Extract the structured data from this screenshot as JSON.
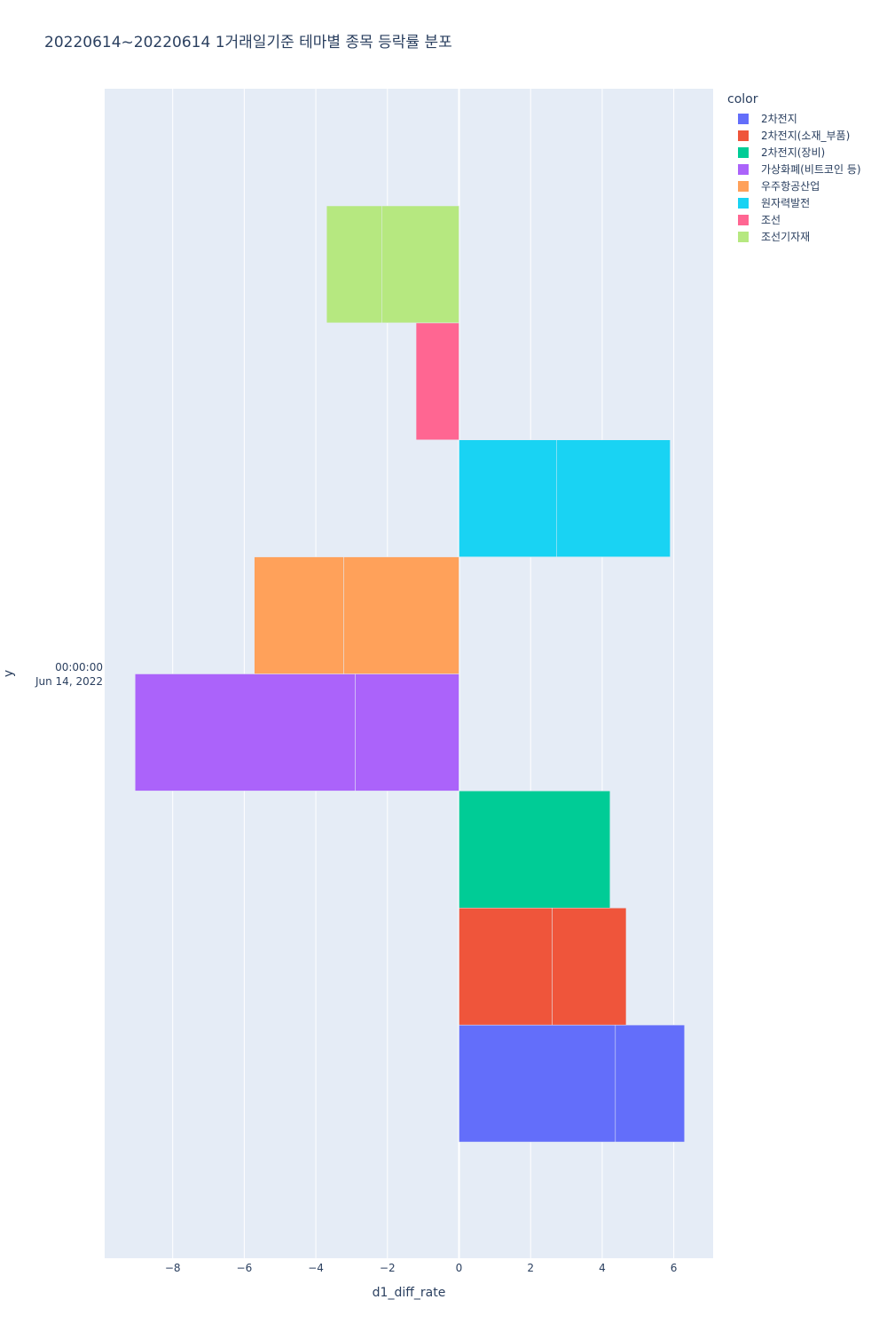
{
  "chart_data": {
    "type": "bar",
    "orientation": "horizontal",
    "barmode": "relative",
    "title": "20220614~20220614 1거래일기준 테마별 종목 등락률 분포",
    "xlabel": "d1_diff_rate",
    "ylabel": "y",
    "y_tick_label": [
      "00:00:00",
      "Jun 14, 2022"
    ],
    "xlim": [
      -9.9,
      7.1
    ],
    "x_ticks": [
      -8,
      -6,
      -4,
      -2,
      0,
      2,
      4,
      6
    ],
    "x_tick_labels": [
      "−8",
      "−6",
      "−4",
      "−2",
      "0",
      "2",
      "4",
      "6"
    ],
    "grid": true,
    "legend_title": "color",
    "legend_position": "top-right",
    "series": [
      {
        "name": "2차전지",
        "color": "#636efa",
        "values": [
          4.37,
          1.93
        ]
      },
      {
        "name": "2차전지(소재_부품)",
        "color": "#EF553B",
        "values": [
          2.6,
          2.07
        ]
      },
      {
        "name": "2차전지(장비)",
        "color": "#00cc96",
        "values": [
          4.22
        ]
      },
      {
        "name": "가상화폐(비트코인 등)",
        "color": "#ab63fa",
        "values": [
          -2.9,
          -6.15
        ]
      },
      {
        "name": "우주항공산업",
        "color": "#FFA15A",
        "values": [
          -3.22,
          -2.5
        ]
      },
      {
        "name": "원자력발전",
        "color": "#19d3f3",
        "values": [
          2.72,
          3.18
        ]
      },
      {
        "name": "조선",
        "color": "#FF6692",
        "values": [
          -1.2
        ]
      },
      {
        "name": "조선기자재",
        "color": "#B6E880",
        "values": [
          -2.15,
          -1.55
        ]
      }
    ]
  }
}
